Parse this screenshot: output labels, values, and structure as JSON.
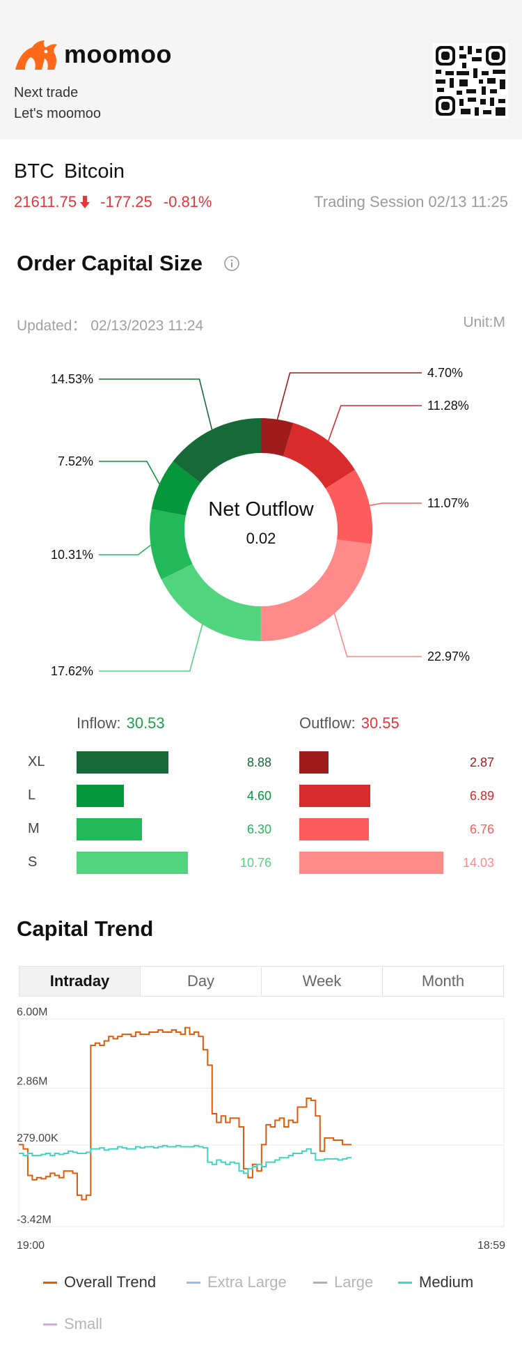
{
  "header": {
    "brand": "moomoo",
    "tagline1": "Next trade",
    "tagline2": "Let's moomoo",
    "accent": "#ff6a1a"
  },
  "stock": {
    "symbol": "BTC",
    "name": "Bitcoin",
    "price": "21611.75",
    "change": "-177.25",
    "change_pct": "-0.81%",
    "session": "Trading Session 02/13 11:25",
    "down_color": "#e8333a"
  },
  "order_capital": {
    "title": "Order Capital Size",
    "updated": "Updated：  02/13/2023 11:24",
    "unit": "Unit:M",
    "center_title": "Net Outflow",
    "center_value": "0.02",
    "inflow_label": "Inflow:",
    "inflow_total": "30.53",
    "outflow_label": "Outflow:",
    "outflow_total": "30.55",
    "rows": [
      {
        "label": "XL",
        "inflow": "8.88",
        "outflow": "2.87"
      },
      {
        "label": "L",
        "inflow": "4.60",
        "outflow": "6.89"
      },
      {
        "label": "M",
        "inflow": "6.30",
        "outflow": "6.76"
      },
      {
        "label": "S",
        "inflow": "10.76",
        "outflow": "14.03"
      }
    ]
  },
  "chart_data": [
    {
      "type": "pie",
      "title": "",
      "donut": true,
      "slices": [
        {
          "label": "Outflow XL",
          "value": 4.7,
          "display": "4.70%",
          "color": "#9e1c1c"
        },
        {
          "label": "Outflow L",
          "value": 11.28,
          "display": "11.28%",
          "color": "#d92b2b"
        },
        {
          "label": "Outflow M",
          "value": 11.07,
          "display": "11.07%",
          "color": "#fd5c5c"
        },
        {
          "label": "Outflow S",
          "value": 22.97,
          "display": "22.97%",
          "color": "#ff8a8a"
        },
        {
          "label": "Inflow S",
          "value": 17.62,
          "display": "17.62%",
          "color": "#52d47f"
        },
        {
          "label": "Inflow M",
          "value": 10.31,
          "display": "10.31%",
          "color": "#22b95a"
        },
        {
          "label": "Inflow L",
          "value": 7.52,
          "display": "7.52%",
          "color": "#06963b"
        },
        {
          "label": "Inflow XL",
          "value": 14.53,
          "display": "14.53%",
          "color": "#166a37"
        }
      ]
    },
    {
      "type": "line",
      "title": "Capital Trend",
      "y_ticks": [
        "6.00M",
        "2.86M",
        "279.00K",
        "-3.42M"
      ],
      "ylim": [
        -3.42,
        6.0
      ],
      "x_start_label": "19:00",
      "x_end_label": "18:59",
      "grid": true,
      "series": [
        {
          "name": "Overall Trend",
          "color": "#e05a0a",
          "values": [
            0.3,
            0.1,
            -1.1,
            -1.3,
            -1.2,
            -1.25,
            -1.15,
            -1.0,
            -1.1,
            -1.2,
            -0.9,
            -0.9,
            -1.0,
            -2.0,
            -2.2,
            -2.0,
            4.8,
            4.9,
            4.8,
            5.0,
            5.2,
            5.1,
            5.2,
            5.3,
            5.3,
            5.2,
            5.4,
            5.3,
            5.3,
            5.4,
            5.4,
            5.5,
            5.4,
            5.4,
            5.5,
            5.4,
            5.3,
            5.6,
            5.3,
            5.4,
            5.2,
            4.6,
            3.9,
            1.7,
            1.3,
            1.6,
            1.3,
            1.5,
            1.5,
            1.1,
            -0.8,
            -1.2,
            -0.6,
            -0.9,
            0.3,
            1.2,
            1.1,
            1.4,
            1.5,
            1.1,
            1.4,
            1.3,
            2.0,
            2.0,
            2.4,
            2.3,
            1.6,
            0.0,
            0.6,
            0.6,
            0.5,
            0.5,
            0.3,
            0.3,
            0.3
          ]
        },
        {
          "name": "Extra Large",
          "color": "#9bbcf0",
          "values": []
        },
        {
          "name": "Large",
          "color": "#b0b0b0",
          "values": []
        },
        {
          "name": "Medium",
          "color": "#3fd3c4",
          "values": [
            -0.1,
            -0.2,
            -0.1,
            -0.2,
            -0.2,
            -0.15,
            -0.1,
            -0.2,
            -0.1,
            -0.15,
            -0.1,
            0.0,
            -0.05,
            -0.1,
            -0.1,
            -0.05,
            0.1,
            0.1,
            0.15,
            0.05,
            0.1,
            0.1,
            0.2,
            0.15,
            0.1,
            0.1,
            0.2,
            0.15,
            0.2,
            0.2,
            0.15,
            0.2,
            0.25,
            0.2,
            0.2,
            0.25,
            0.2,
            0.2,
            0.2,
            0.25,
            0.2,
            0.15,
            -0.5,
            -0.6,
            -0.4,
            -0.5,
            -0.6,
            -0.5,
            -0.55,
            -0.9,
            -1.0,
            -0.8,
            -0.7,
            -0.6,
            -0.7,
            -0.5,
            -0.5,
            -0.4,
            -0.3,
            -0.3,
            -0.2,
            -0.1,
            -0.1,
            0.0,
            0.1,
            -0.1,
            -0.4,
            -0.4,
            -0.35,
            -0.35,
            -0.35,
            -0.4,
            -0.35,
            -0.3,
            -0.3
          ]
        },
        {
          "name": "Small",
          "color": "#d3a7ee",
          "values": []
        }
      ]
    }
  ],
  "capital_trend": {
    "title": "Capital Trend",
    "tabs": [
      "Intraday",
      "Day",
      "Week",
      "Month"
    ],
    "active_tab": "Intraday"
  }
}
